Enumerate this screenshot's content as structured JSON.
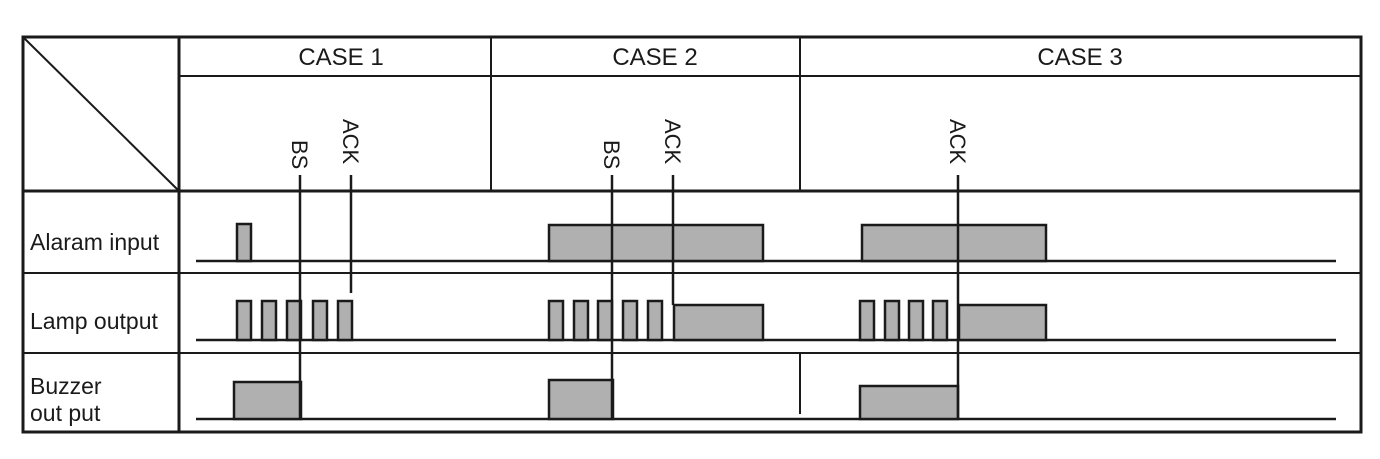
{
  "columns": {
    "case1": "CASE 1",
    "case2": "CASE 2",
    "case3": "CASE 3"
  },
  "rows": {
    "alarm": "Alaram input",
    "lamp": "Lamp output",
    "buzzer_line1": "Buzzer",
    "buzzer_line2": "out put"
  },
  "events": {
    "bs": "BS",
    "ack": "ACK"
  },
  "colors": {
    "line": "#1a1a1a",
    "pulse_fill": "#b0b0b0",
    "background": "#ffffff"
  }
}
